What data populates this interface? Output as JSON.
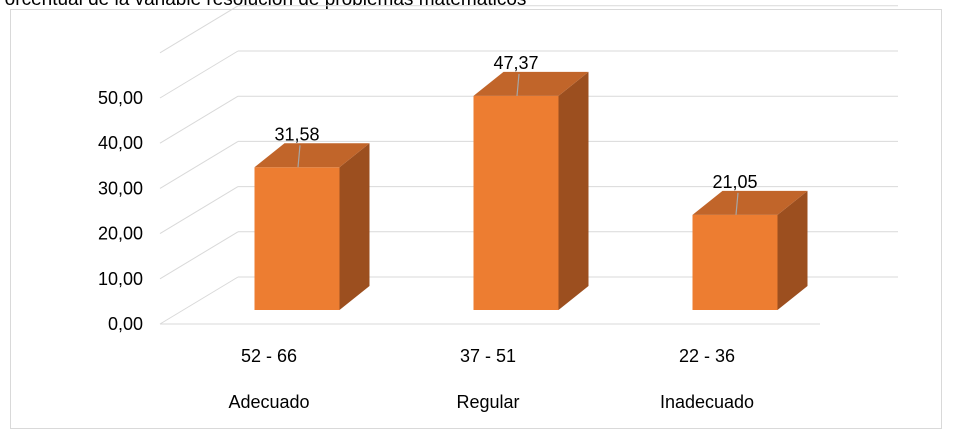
{
  "chart_data": {
    "type": "bar",
    "title": "Porcentual de la variable resolución de problemas matemáticos",
    "categories": [
      "52 - 66",
      "37  - 51",
      "22 - 36"
    ],
    "levels": [
      "Adecuado",
      "Regular",
      "Inadecuado"
    ],
    "values": [
      31.58,
      47.37,
      21.05
    ],
    "data_labels": [
      "31,58",
      "47,37",
      "21,05"
    ],
    "y_ticks": [
      "0,00",
      "10,00",
      "20,00",
      "30,00",
      "40,00",
      "50,00"
    ],
    "ylim": [
      0,
      50
    ],
    "grid": true,
    "legend": "none",
    "xlabel": "",
    "ylabel": "",
    "colors": {
      "front": "#ed7d31",
      "top": "#c1652a",
      "side": "#9c4f1f",
      "grid": "#d9d9d9"
    }
  }
}
